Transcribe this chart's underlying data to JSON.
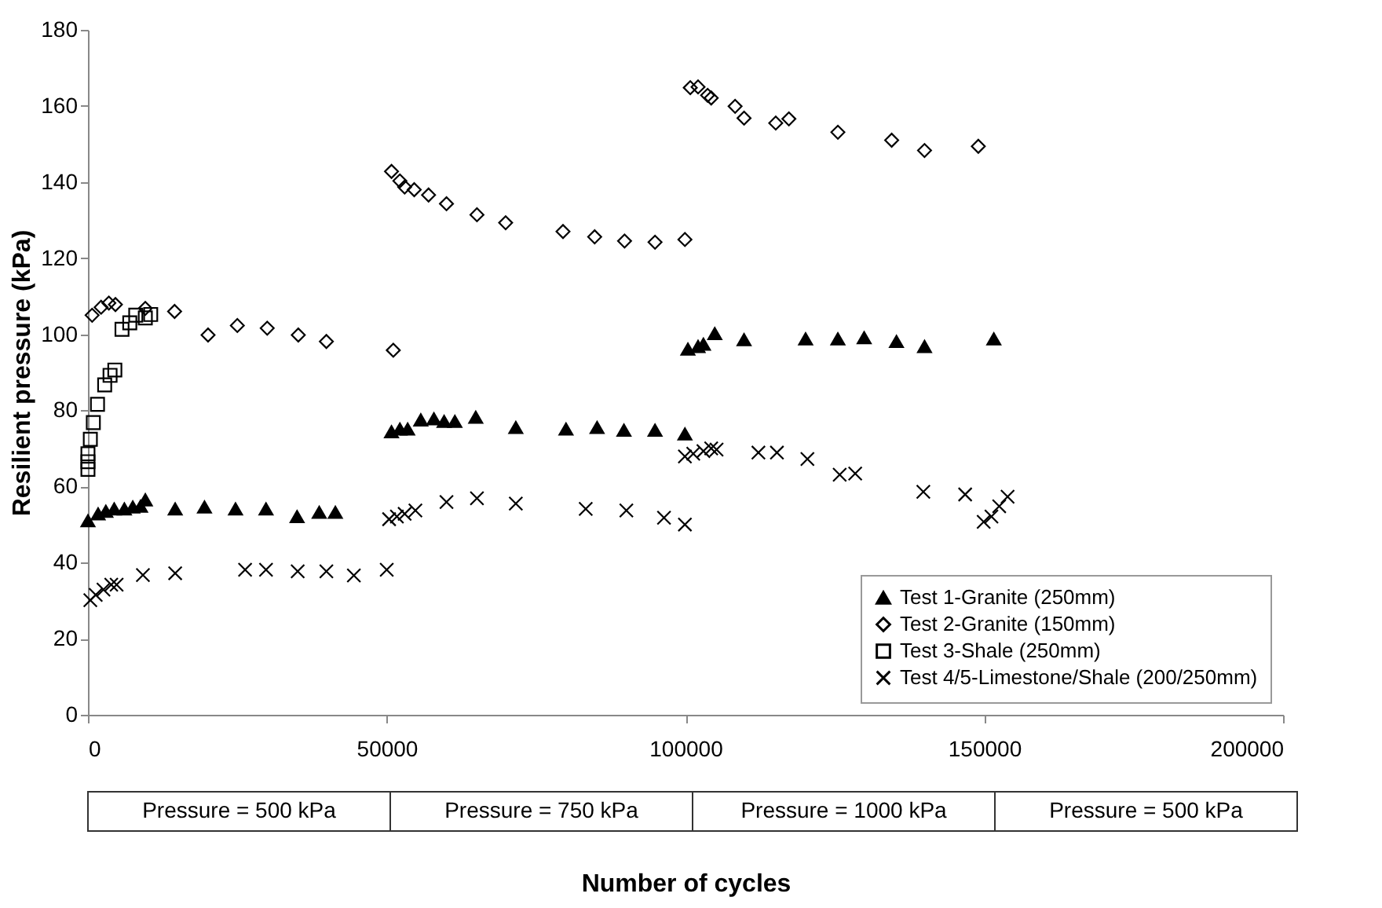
{
  "chart_data": {
    "type": "scatter",
    "xlabel": "Number of cycles",
    "ylabel": "Resilient pressure (kPa)",
    "xlim": [
      0,
      200000
    ],
    "xticks": [
      0,
      50000,
      100000,
      150000,
      200000
    ],
    "ylim": [
      0,
      180
    ],
    "yticks": [
      0,
      20,
      40,
      60,
      80,
      100,
      120,
      140,
      160,
      180
    ],
    "grid": false,
    "legend": "bottom right",
    "annotations": [
      "Pressure = 500 kPa",
      "Pressure = 750 kPa",
      "Pressure = 1000 kPa",
      "Pressure = 500 kPa"
    ],
    "series": [
      {
        "name": "Test 1-Granite (250mm)",
        "color": "#000000",
        "marker": "triangle",
        "x": [
          0,
          1700,
          3000,
          4400,
          6100,
          7500,
          8800,
          9600,
          14600,
          19500,
          24700,
          29800,
          35000,
          38700,
          41400,
          50800,
          52200,
          53500,
          55700,
          57900,
          59600,
          61400,
          64900,
          71600,
          80000,
          85200,
          89700,
          94900,
          99900,
          100400,
          102100,
          103000,
          104900,
          109800,
          120100,
          125500,
          129900,
          135300,
          140000,
          151600
        ],
        "values": [
          51,
          52.8,
          53.5,
          54.1,
          54.1,
          54.6,
          54.8,
          56.5,
          54.1,
          54.6,
          54.1,
          54.1,
          52.1,
          53.2,
          53.2,
          74.4,
          75.1,
          75.1,
          77.5,
          77.8,
          77.1,
          77.1,
          78.2,
          75.5,
          75.1,
          75.5,
          74.8,
          74.8,
          73.8,
          96.1,
          96.8,
          97.4,
          100.2,
          98.6,
          98.8,
          98.8,
          99.1,
          98.1,
          96.8,
          98.8
        ]
      },
      {
        "name": "Test 2-Granite (150mm)",
        "color": "#000000",
        "marker": "diamond",
        "x": [
          700,
          2200,
          3500,
          4600,
          9600,
          14500,
          20100,
          25000,
          30000,
          35200,
          39900,
          51100,
          50800,
          52200,
          53000,
          54600,
          57000,
          60000,
          65100,
          69900,
          79500,
          84800,
          89800,
          94900,
          99900,
          100800,
          102100,
          103700,
          104300,
          108300,
          109800,
          115100,
          117300,
          125500,
          134500,
          140000,
          149000
        ],
        "values": [
          105,
          107.1,
          108.2,
          107.8,
          106.8,
          106,
          99.8,
          102.3,
          101.6,
          99.8,
          98.1,
          95.8,
          142.8,
          140.3,
          138.7,
          138,
          136.6,
          134.3,
          131.4,
          129.3,
          127,
          125.6,
          124.5,
          124.2,
          124.9,
          164.8,
          165,
          162.8,
          162.1,
          159.9,
          156.8,
          155.5,
          156.6,
          153.1,
          151,
          148.3,
          149.4
        ]
      },
      {
        "name": "Test 3-Shale (250mm)",
        "color": "#000000",
        "marker": "square",
        "x": [
          0,
          0,
          0,
          400,
          900,
          1600,
          2800,
          3700,
          4500,
          5700,
          7000,
          8000,
          9600,
          10500
        ],
        "values": [
          64.5,
          66.5,
          68.6,
          72.4,
          76.8,
          81.6,
          86.7,
          89.2,
          90.6,
          101.3,
          103,
          105,
          104.3,
          105.2
        ]
      },
      {
        "name": "Test 4/5-Limestone/Shale (200/250mm)",
        "color": "#000000",
        "marker": "cross",
        "x": [
          400,
          1300,
          2600,
          3900,
          4800,
          9200,
          14600,
          26300,
          29800,
          35100,
          39900,
          44500,
          50000,
          50400,
          51700,
          53000,
          54800,
          60000,
          65100,
          71600,
          83300,
          90100,
          96400,
          99900,
          99900,
          101300,
          103000,
          104300,
          105200,
          112200,
          115300,
          120400,
          125800,
          128400,
          139800,
          146800,
          149900,
          151200,
          152500,
          153900
        ],
        "values": [
          30.1,
          31.5,
          32.9,
          34.2,
          34.2,
          36.7,
          37.2,
          38.1,
          38.1,
          37.7,
          37.7,
          36.6,
          38.1,
          51.4,
          52.1,
          52.8,
          53.7,
          55.9,
          56.9,
          55.5,
          54.1,
          53.7,
          51.8,
          50,
          67.9,
          68.6,
          69.3,
          70,
          69.7,
          68.9,
          68.9,
          67.2,
          63.1,
          63.4,
          58.6,
          57.9,
          50.7,
          52.1,
          54.8,
          57.3
        ]
      }
    ]
  }
}
